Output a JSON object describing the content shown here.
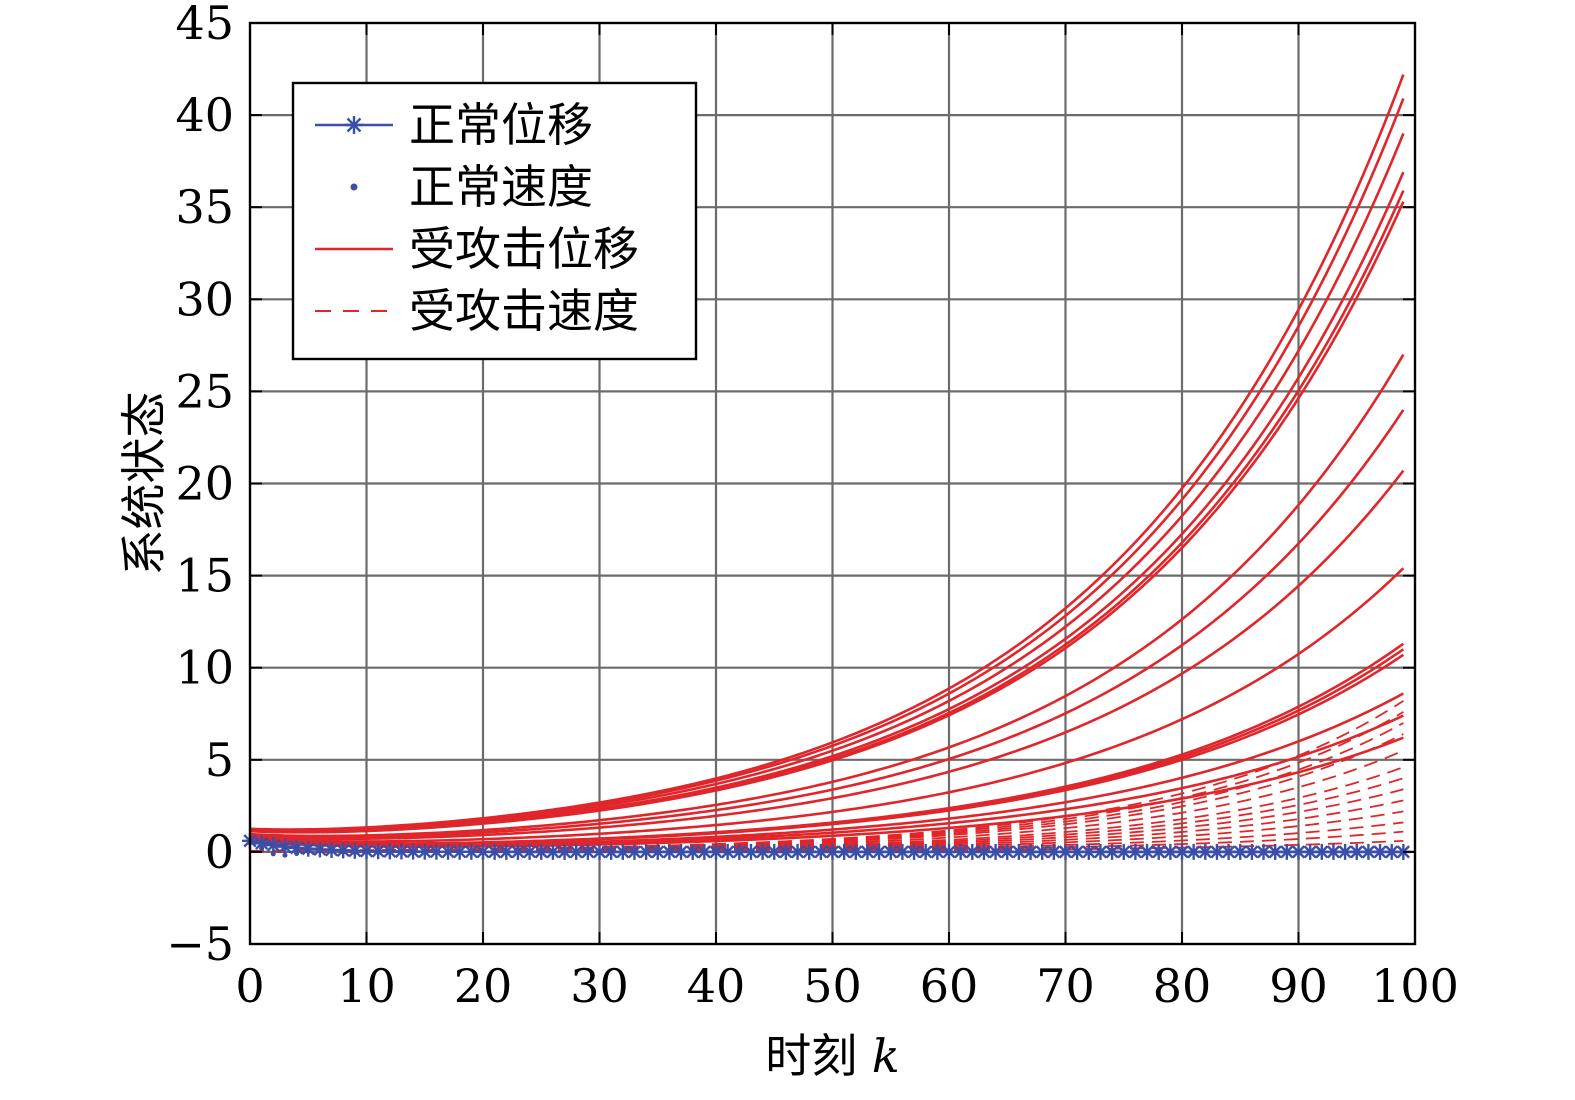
{
  "chart_data": {
    "type": "line",
    "xlabel_text": "时刻",
    "xlabel_var": "k",
    "ylabel": "系统状态",
    "xlim": [
      0,
      100
    ],
    "ylim": [
      -5,
      45
    ],
    "x_ticks": [
      0,
      10,
      20,
      30,
      40,
      50,
      60,
      70,
      80,
      90,
      100
    ],
    "y_ticks": [
      -5,
      0,
      5,
      10,
      15,
      20,
      25,
      30,
      35,
      40,
      45
    ],
    "x_tick_labels": [
      "0",
      "10",
      "20",
      "30",
      "40",
      "50",
      "60",
      "70",
      "80",
      "90",
      "100"
    ],
    "y_tick_labels": [
      "−5",
      "0",
      "5",
      "10",
      "15",
      "20",
      "25",
      "30",
      "35",
      "40",
      "45"
    ],
    "grid": true,
    "legend": {
      "placement": "top-left",
      "entries": [
        {
          "label": "正常位移",
          "style": "line-star",
          "color": "#3a4fa8"
        },
        {
          "label": "正常速度",
          "style": "dot",
          "color": "#3a4fa8"
        },
        {
          "label": "受攻击位移",
          "style": "solid",
          "color": "#e0262b"
        },
        {
          "label": "受攻击速度",
          "style": "dashed",
          "color": "#e0262b"
        }
      ]
    },
    "x_range": [
      0,
      99
    ],
    "attacked_displacement_finals": [
      42.2,
      40.9,
      39.0,
      36.9,
      35.9,
      35.3,
      27.0,
      24.0,
      20.7,
      15.4,
      11.3,
      11.0,
      10.7,
      8.6,
      7.4,
      6.2
    ],
    "attacked_velocity_finals": [
      8.2,
      7.6,
      7.0,
      6.4,
      5.5,
      4.6,
      4.0,
      3.4,
      2.8,
      2.2,
      1.6,
      1.1,
      0.6
    ],
    "normal_displacement_level": 0,
    "normal_velocity_level": 0,
    "colors": {
      "normal": "#3a4fa8",
      "attacked": "#e0262b",
      "grid": "#6b6b6b",
      "axis": "#000000"
    }
  }
}
